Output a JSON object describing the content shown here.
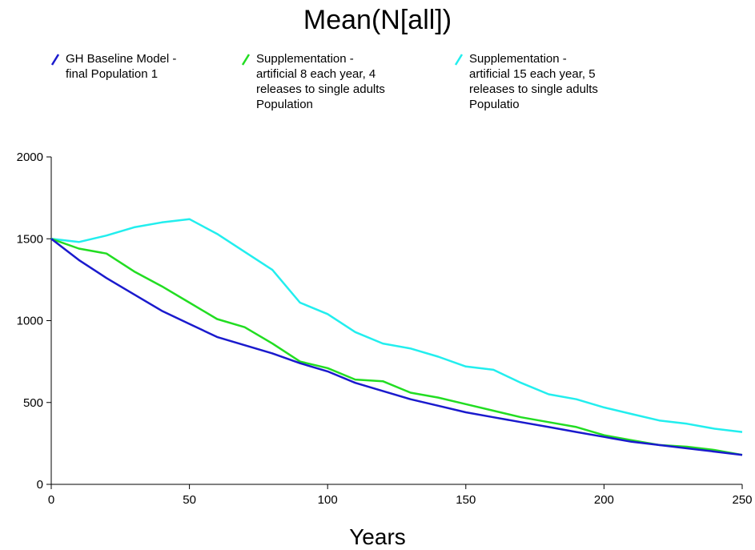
{
  "chart_data": {
    "type": "line",
    "title": "Mean(N[all])",
    "xlabel": "Years",
    "ylabel": "",
    "xlim": [
      0,
      250
    ],
    "ylim": [
      0,
      2000
    ],
    "xticks": [
      "0",
      "50",
      "100",
      "150",
      "200",
      "250"
    ],
    "yticks": [
      "0",
      "500",
      "1000",
      "1500",
      "2000"
    ],
    "grid": false,
    "legend": "top",
    "series": [
      {
        "name": "GH Baseline Model - final Population 1",
        "color": "#1a1acd",
        "x": [
          0,
          10,
          20,
          30,
          40,
          50,
          60,
          70,
          80,
          90,
          100,
          110,
          120,
          130,
          140,
          150,
          160,
          170,
          180,
          190,
          200,
          210,
          220,
          230,
          240,
          250
        ],
        "y": [
          1500,
          1370,
          1260,
          1160,
          1060,
          980,
          900,
          850,
          800,
          740,
          690,
          620,
          570,
          520,
          480,
          440,
          410,
          380,
          350,
          320,
          290,
          260,
          240,
          220,
          200,
          180
        ]
      },
      {
        "name": "Supplementation - artificial 8 each year, 4 releases to single adults Population",
        "color": "#22dd22",
        "x": [
          0,
          10,
          20,
          30,
          40,
          50,
          60,
          70,
          80,
          90,
          100,
          110,
          120,
          130,
          140,
          150,
          160,
          170,
          180,
          190,
          200,
          210,
          220,
          230,
          240,
          250
        ],
        "y": [
          1500,
          1440,
          1410,
          1300,
          1210,
          1110,
          1010,
          960,
          860,
          750,
          710,
          640,
          630,
          560,
          530,
          490,
          450,
          410,
          380,
          350,
          300,
          270,
          240,
          230,
          210,
          180
        ]
      },
      {
        "name": "Supplementation - artificial 15 each year, 5 releases to single adults Populatio",
        "color": "#22eeee",
        "x": [
          0,
          10,
          20,
          30,
          40,
          50,
          60,
          70,
          80,
          90,
          100,
          110,
          120,
          130,
          140,
          150,
          160,
          170,
          180,
          190,
          200,
          210,
          220,
          230,
          240,
          250
        ],
        "y": [
          1500,
          1480,
          1520,
          1570,
          1600,
          1620,
          1530,
          1420,
          1310,
          1110,
          1040,
          930,
          860,
          830,
          780,
          720,
          700,
          620,
          550,
          520,
          470,
          430,
          390,
          370,
          340,
          320
        ]
      }
    ]
  },
  "legend": [
    {
      "text": "GH Baseline Model -\nfinal Population 1",
      "color": "#1a1acd"
    },
    {
      "text": "Supplementation -\nartificial 8 each year, 4\nreleases to single adults\nPopulation",
      "color": "#22dd22"
    },
    {
      "text": "Supplementation -\nartificial 15 each year, 5\nreleases to single adults\nPopulatio",
      "color": "#22eeee"
    }
  ]
}
